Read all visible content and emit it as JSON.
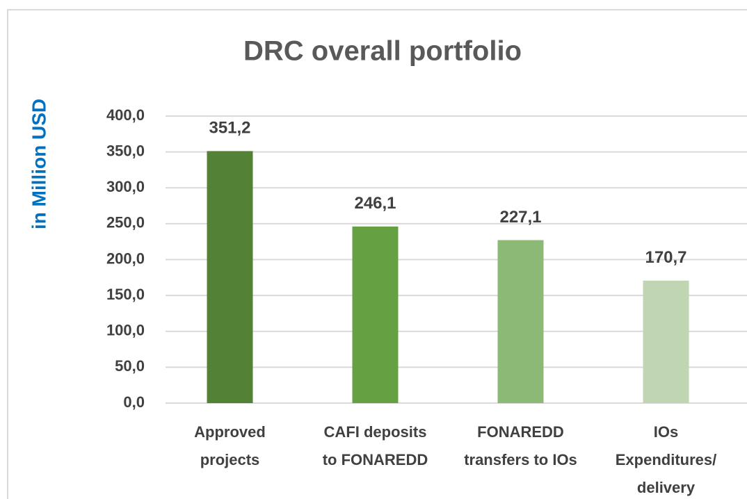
{
  "chart_data": {
    "type": "bar",
    "title": "DRC overall portfolio",
    "y_label": "in Million USD",
    "categories": [
      [
        "Approved",
        "projects"
      ],
      [
        "CAFI deposits",
        "to FONAREDD"
      ],
      [
        "FONAREDD",
        "transfers to IOs"
      ],
      [
        "IOs",
        "Expenditures/",
        "delivery"
      ]
    ],
    "values": [
      351.2,
      246.1,
      227.1,
      170.7
    ],
    "value_labels": [
      "351,2",
      "246,1",
      "227,1",
      "170,7"
    ],
    "colors": [
      "#538135",
      "#65a043",
      "#8cb976",
      "#c0d5b2"
    ],
    "ylim": [
      0,
      400
    ],
    "yticks": [
      {
        "value": 0,
        "label": "0,0"
      },
      {
        "value": 50,
        "label": "50,0"
      },
      {
        "value": 100,
        "label": "100,0"
      },
      {
        "value": 150,
        "label": "150,0"
      },
      {
        "value": 200,
        "label": "200,0"
      },
      {
        "value": 250,
        "label": "250,0"
      },
      {
        "value": 300,
        "label": "300,0"
      },
      {
        "value": 350,
        "label": "350,0"
      },
      {
        "value": 400,
        "label": "400,0"
      }
    ],
    "grid": true
  }
}
